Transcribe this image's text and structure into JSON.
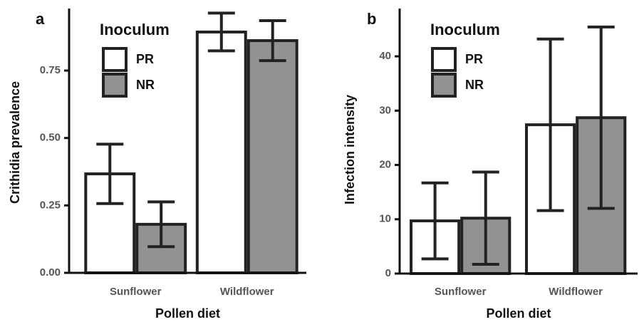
{
  "chart_data": [
    {
      "type": "bar",
      "panel_label": "a",
      "legend_title": "Inoculum",
      "categories": [
        "Sunflower",
        "Wildflower"
      ],
      "series": [
        {
          "name": "PR",
          "color": "#ffffff",
          "values": [
            0.367,
            0.893
          ],
          "errors": [
            0.11,
            0.07
          ]
        },
        {
          "name": "NR",
          "color": "#929292",
          "values": [
            0.18,
            0.861
          ],
          "errors": [
            0.083,
            0.074
          ]
        }
      ],
      "xlabel": "Pollen diet",
      "ylabel": "Crithidia prevalence",
      "ylim": [
        0,
        0.98
      ],
      "yticks": [
        {
          "value": 0,
          "label": "0.00"
        },
        {
          "value": 0.25,
          "label": "0.25"
        },
        {
          "value": 0.5,
          "label": "0.50"
        },
        {
          "value": 0.75,
          "label": "0.75"
        }
      ]
    },
    {
      "type": "bar",
      "panel_label": "b",
      "legend_title": "Inoculum",
      "categories": [
        "Sunflower",
        "Wildflower"
      ],
      "series": [
        {
          "name": "PR",
          "color": "#ffffff",
          "values": [
            9.7,
            27.4
          ],
          "errors": [
            7,
            15.8
          ]
        },
        {
          "name": "NR",
          "color": "#929292",
          "values": [
            10.2,
            28.7
          ],
          "errors": [
            8.5,
            16.7
          ]
        }
      ],
      "xlabel": "Pollen diet",
      "ylabel": "Infection intensity",
      "ylim": [
        0,
        48.8
      ],
      "yticks": [
        0,
        10,
        20,
        30,
        40
      ]
    }
  ]
}
